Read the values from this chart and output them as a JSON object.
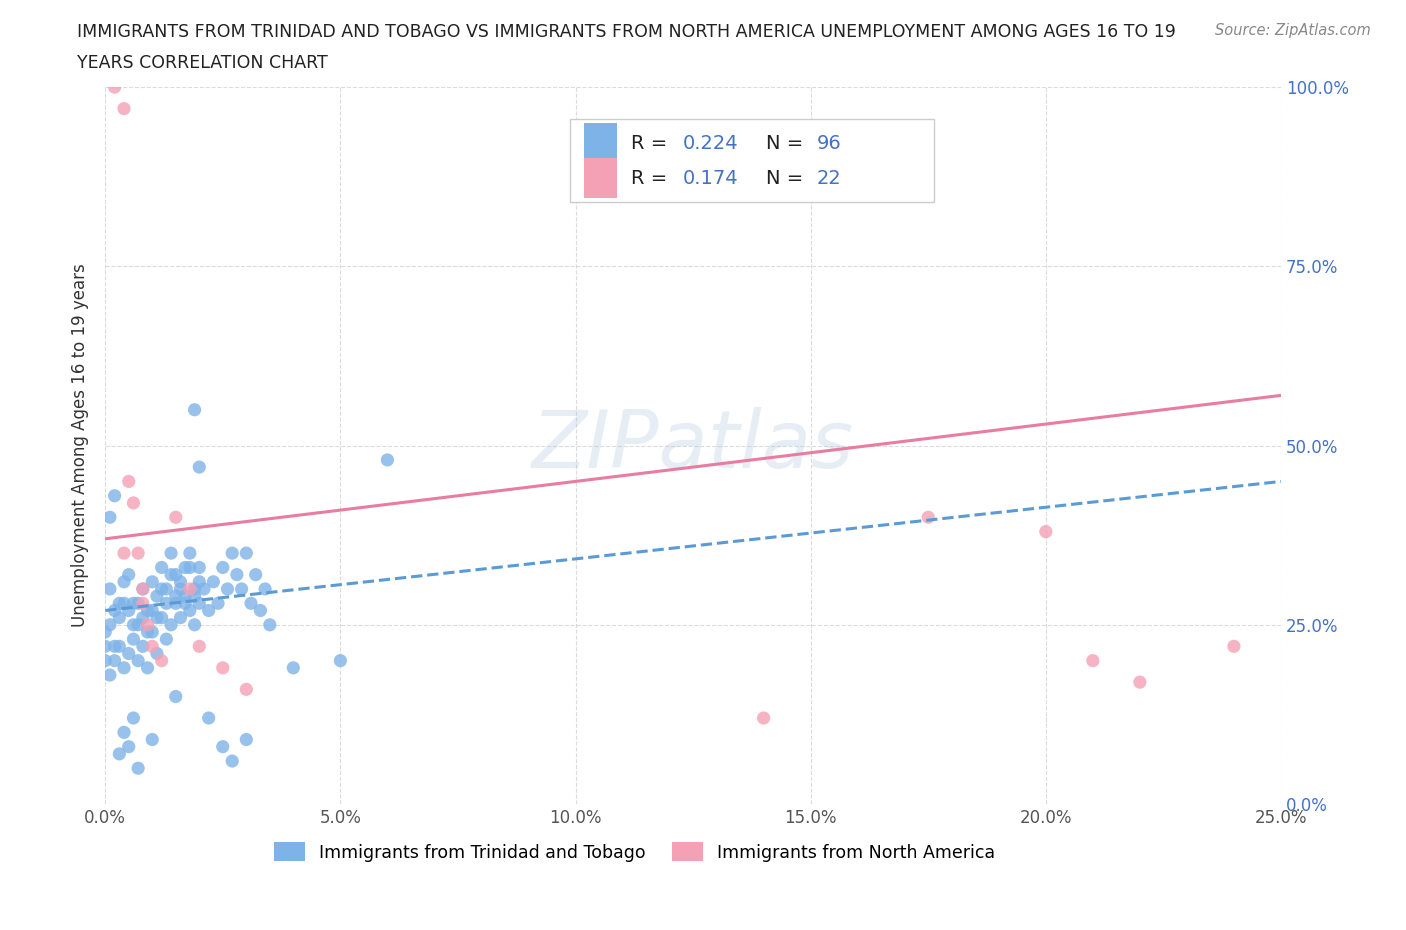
{
  "title_line1": "IMMIGRANTS FROM TRINIDAD AND TOBAGO VS IMMIGRANTS FROM NORTH AMERICA UNEMPLOYMENT AMONG AGES 16 TO 19",
  "title_line2": "YEARS CORRELATION CHART",
  "source": "Source: ZipAtlas.com",
  "ylabel": "Unemployment Among Ages 16 to 19 years",
  "xlim": [
    0.0,
    0.25
  ],
  "ylim": [
    0.0,
    1.0
  ],
  "xticks": [
    0.0,
    0.05,
    0.1,
    0.15,
    0.2,
    0.25
  ],
  "xticklabels": [
    "0.0%",
    "5.0%",
    "10.0%",
    "15.0%",
    "20.0%",
    "25.0%"
  ],
  "yticks": [
    0.0,
    0.25,
    0.5,
    0.75,
    1.0
  ],
  "yticklabels": [
    "0.0%",
    "25.0%",
    "50.0%",
    "75.0%",
    "100.0%"
  ],
  "blue_color": "#7EB3E8",
  "pink_color": "#F4A0B5",
  "blue_line_color": "#5B9BD5",
  "pink_line_color": "#E87DA0",
  "R_blue": 0.224,
  "N_blue": 96,
  "R_pink": 0.174,
  "N_pink": 22,
  "legend_color": "#4472C4",
  "watermark": "ZIPatlas",
  "blue_line_x": [
    0.0,
    0.25
  ],
  "blue_line_y": [
    0.27,
    0.45
  ],
  "pink_line_x": [
    0.0,
    0.25
  ],
  "pink_line_y": [
    0.37,
    0.57
  ],
  "blue_x": [
    0.001,
    0.002,
    0.003,
    0.004,
    0.005,
    0.006,
    0.007,
    0.008,
    0.009,
    0.01,
    0.011,
    0.012,
    0.013,
    0.014,
    0.015,
    0.016,
    0.017,
    0.018,
    0.019,
    0.02,
    0.001,
    0.002,
    0.003,
    0.004,
    0.005,
    0.006,
    0.007,
    0.008,
    0.009,
    0.01,
    0.011,
    0.012,
    0.013,
    0.014,
    0.015,
    0.016,
    0.017,
    0.018,
    0.019,
    0.02,
    0.0,
    0.0,
    0.0,
    0.001,
    0.002,
    0.003,
    0.004,
    0.005,
    0.006,
    0.007,
    0.008,
    0.009,
    0.01,
    0.011,
    0.012,
    0.013,
    0.014,
    0.015,
    0.016,
    0.017,
    0.018,
    0.019,
    0.02,
    0.021,
    0.022,
    0.023,
    0.024,
    0.025,
    0.026,
    0.027,
    0.028,
    0.029,
    0.03,
    0.031,
    0.032,
    0.033,
    0.034,
    0.035,
    0.04,
    0.05,
    0.06,
    0.001,
    0.002,
    0.003,
    0.004,
    0.005,
    0.006,
    0.007,
    0.01,
    0.015,
    0.019,
    0.02,
    0.022,
    0.025,
    0.027,
    0.03
  ],
  "blue_y": [
    0.3,
    0.27,
    0.28,
    0.31,
    0.32,
    0.28,
    0.25,
    0.3,
    0.27,
    0.31,
    0.29,
    0.33,
    0.3,
    0.35,
    0.32,
    0.3,
    0.33,
    0.35,
    0.3,
    0.33,
    0.25,
    0.22,
    0.26,
    0.28,
    0.27,
    0.25,
    0.28,
    0.26,
    0.24,
    0.27,
    0.26,
    0.3,
    0.28,
    0.32,
    0.29,
    0.31,
    0.28,
    0.33,
    0.29,
    0.31,
    0.2,
    0.22,
    0.24,
    0.18,
    0.2,
    0.22,
    0.19,
    0.21,
    0.23,
    0.2,
    0.22,
    0.19,
    0.24,
    0.21,
    0.26,
    0.23,
    0.25,
    0.28,
    0.26,
    0.29,
    0.27,
    0.25,
    0.28,
    0.3,
    0.27,
    0.31,
    0.28,
    0.33,
    0.3,
    0.35,
    0.32,
    0.3,
    0.35,
    0.28,
    0.32,
    0.27,
    0.3,
    0.25,
    0.19,
    0.2,
    0.48,
    0.4,
    0.43,
    0.07,
    0.1,
    0.08,
    0.12,
    0.05,
    0.09,
    0.15,
    0.55,
    0.47,
    0.12,
    0.08,
    0.06,
    0.09
  ],
  "pink_x": [
    0.002,
    0.004,
    0.005,
    0.006,
    0.007,
    0.008,
    0.009,
    0.01,
    0.012,
    0.015,
    0.018,
    0.02,
    0.025,
    0.03,
    0.14,
    0.175,
    0.2,
    0.21,
    0.22,
    0.24,
    0.004,
    0.008
  ],
  "pink_y": [
    1.0,
    0.97,
    0.45,
    0.42,
    0.35,
    0.3,
    0.25,
    0.22,
    0.2,
    0.4,
    0.3,
    0.22,
    0.19,
    0.16,
    0.12,
    0.4,
    0.38,
    0.2,
    0.17,
    0.22,
    0.35,
    0.28
  ]
}
